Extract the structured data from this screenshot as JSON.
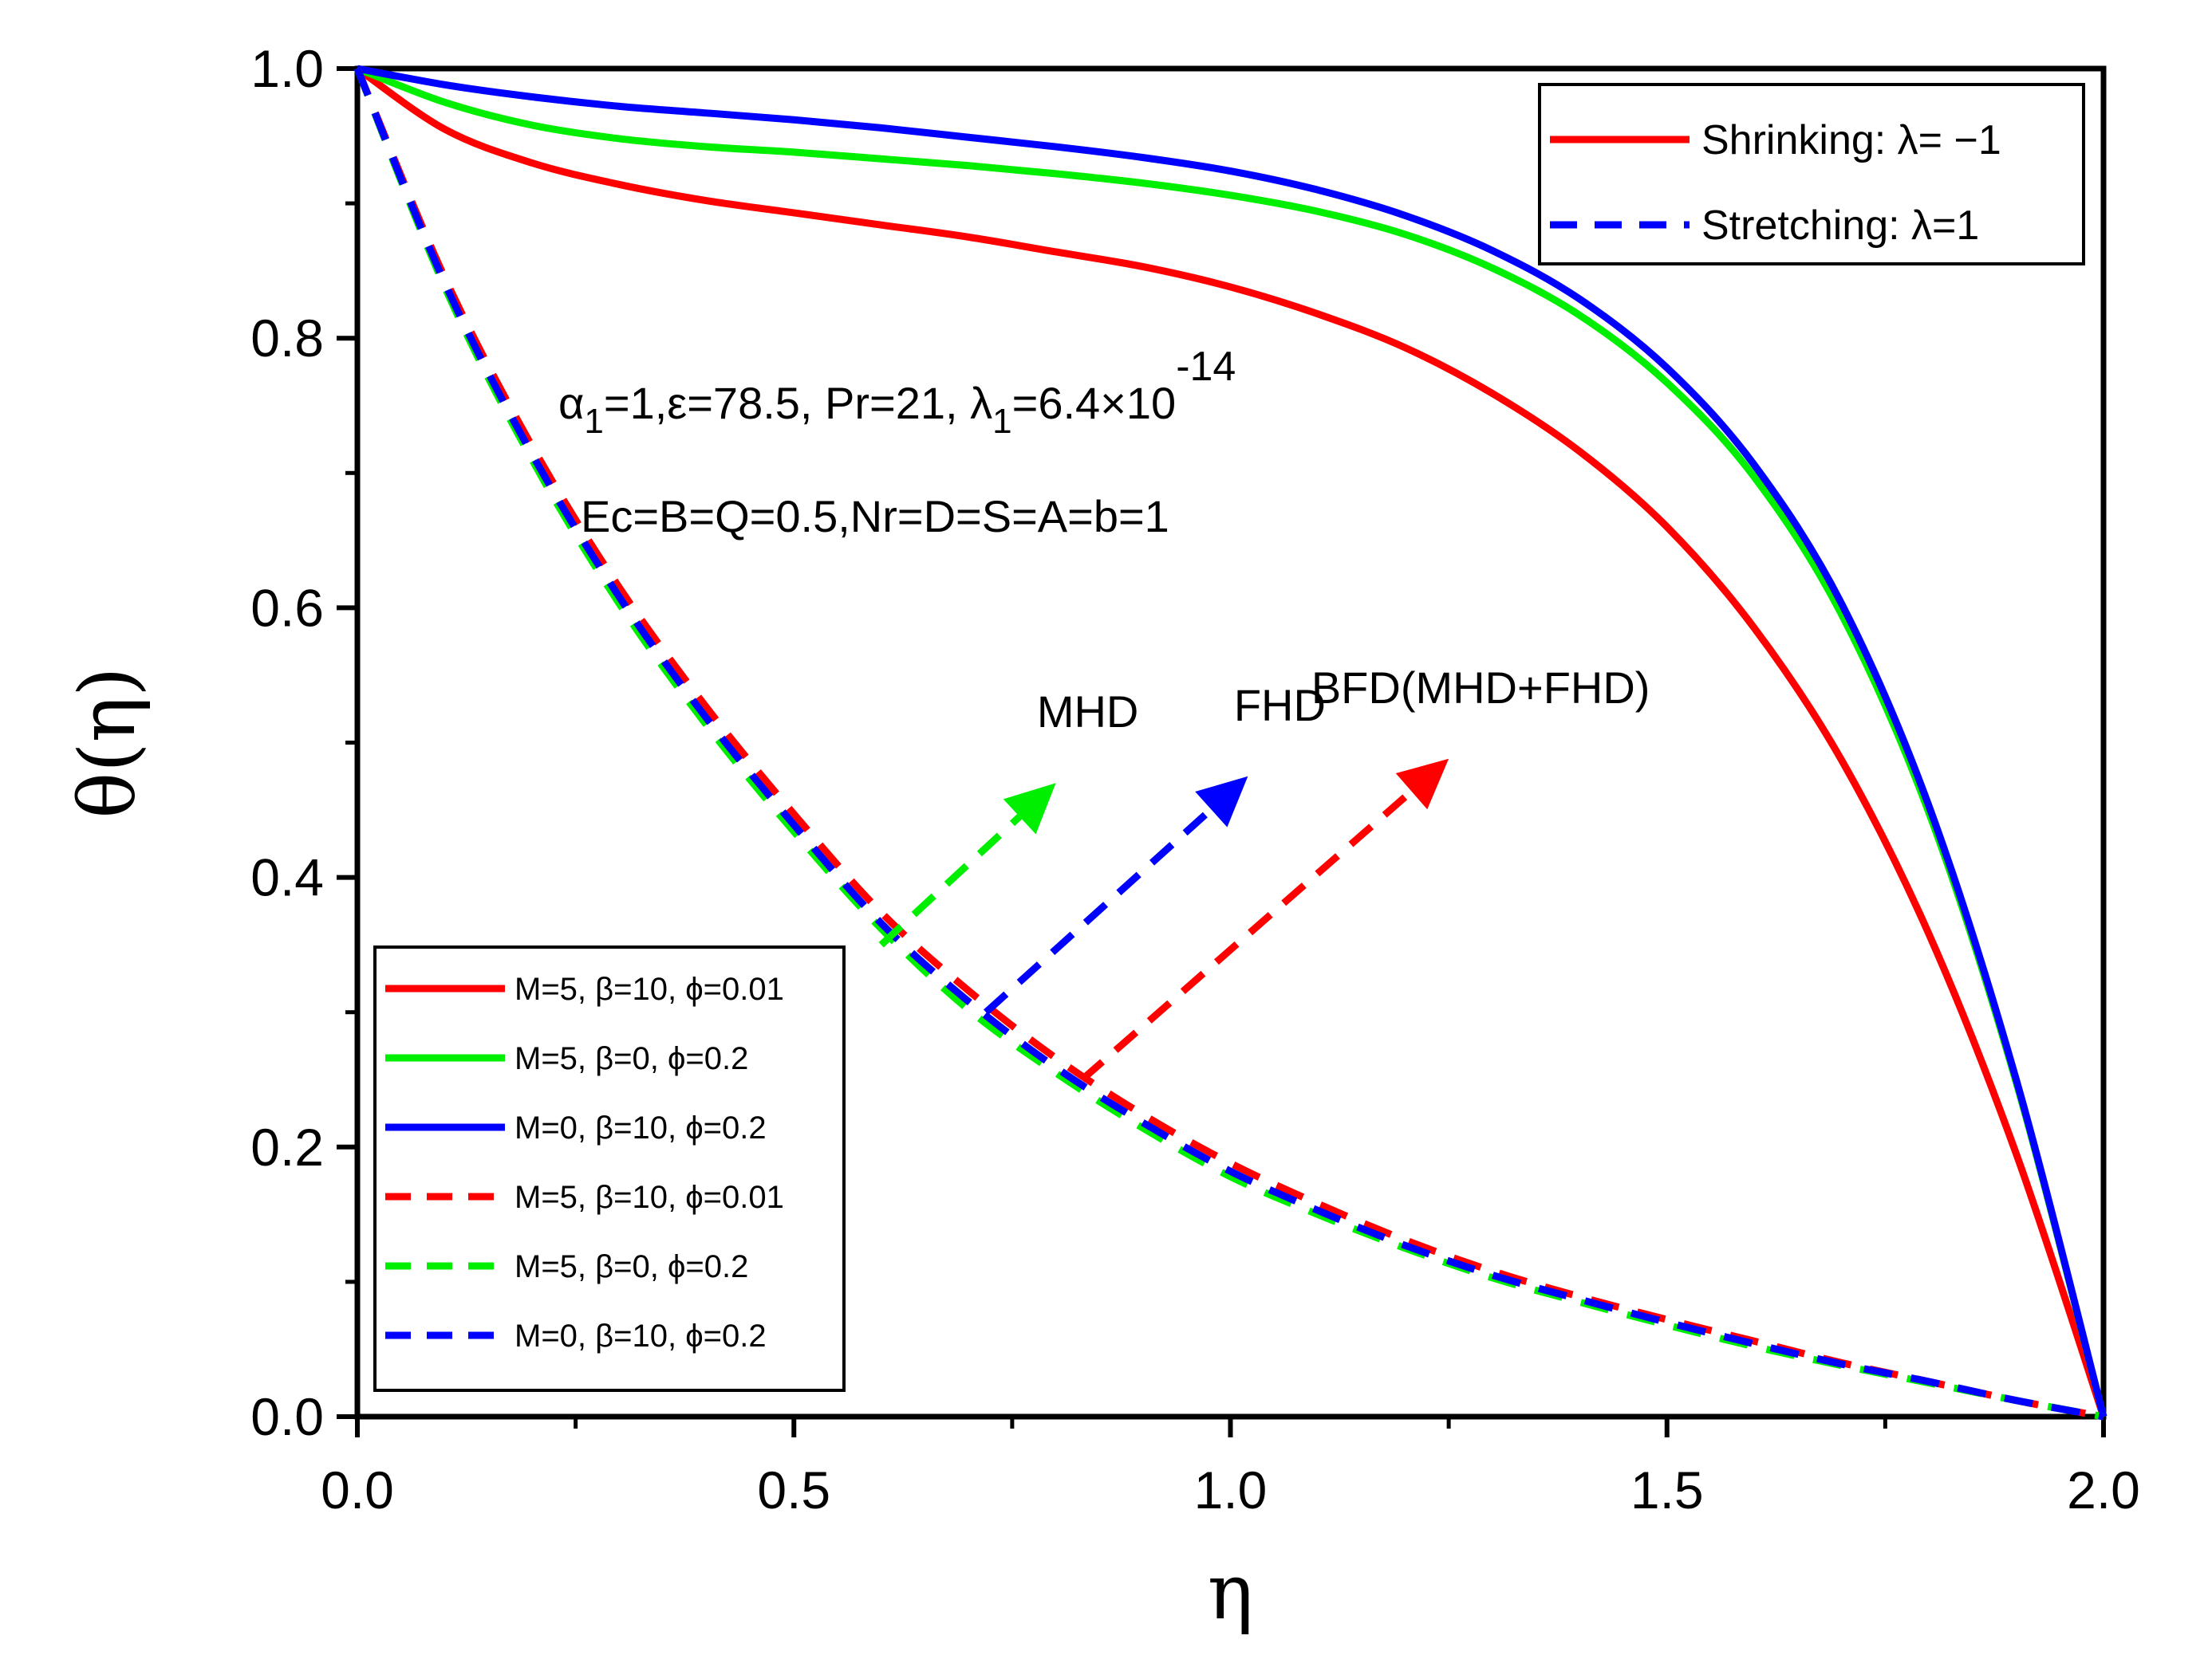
{
  "chart_data": {
    "type": "line",
    "xlabel": "η",
    "ylabel": "θ(η)",
    "xlim": [
      0,
      2
    ],
    "ylim": [
      0,
      1
    ],
    "x_ticks": [
      "0.0",
      "0.5",
      "1.0",
      "1.5",
      "2.0"
    ],
    "y_ticks": [
      "0.0",
      "0.2",
      "0.4",
      "0.6",
      "0.8",
      "1.0"
    ],
    "x": [
      0,
      0.1,
      0.2,
      0.3,
      0.4,
      0.5,
      0.6,
      0.7,
      0.8,
      0.9,
      1.0,
      1.1,
      1.2,
      1.3,
      1.4,
      1.5,
      1.6,
      1.7,
      1.8,
      1.9,
      2.0
    ],
    "series": [
      {
        "name": "Shrinking: M=5, β=10, ϕ=0.01",
        "group": "shrinking",
        "color": "#ff0000",
        "dash": "solid",
        "values": [
          1.0,
          0.955,
          0.93,
          0.914,
          0.902,
          0.893,
          0.884,
          0.875,
          0.864,
          0.853,
          0.838,
          0.818,
          0.793,
          0.759,
          0.716,
          0.66,
          0.585,
          0.487,
          0.358,
          0.195,
          0.0
        ]
      },
      {
        "name": "Shrinking: M=5, β=0, ϕ=0.2",
        "group": "shrinking",
        "color": "#00ee00",
        "dash": "solid",
        "values": [
          1.0,
          0.975,
          0.958,
          0.948,
          0.942,
          0.938,
          0.933,
          0.928,
          0.922,
          0.915,
          0.906,
          0.894,
          0.877,
          0.852,
          0.817,
          0.767,
          0.697,
          0.595,
          0.448,
          0.248,
          0.0
        ]
      },
      {
        "name": "Shrinking: M=0, β=10, ϕ=0.2",
        "group": "shrinking",
        "color": "#0000ff",
        "dash": "solid",
        "values": [
          1.0,
          0.988,
          0.979,
          0.972,
          0.967,
          0.962,
          0.956,
          0.949,
          0.942,
          0.934,
          0.924,
          0.91,
          0.891,
          0.865,
          0.829,
          0.778,
          0.706,
          0.603,
          0.453,
          0.25,
          0.0
        ]
      },
      {
        "name": "Stretching: M=5, β=10, ϕ=0.01",
        "group": "stretching",
        "color": "#ff0000",
        "dash": "dashed",
        "values": [
          1.0,
          0.845,
          0.72,
          0.615,
          0.526,
          0.447,
          0.374,
          0.316,
          0.266,
          0.224,
          0.188,
          0.158,
          0.131,
          0.108,
          0.089,
          0.072,
          0.056,
          0.04,
          0.026,
          0.012,
          0.0
        ]
      },
      {
        "name": "Stretching: M=5, β=0, ϕ=0.2",
        "group": "stretching",
        "color": "#00ee00",
        "dash": "dashed",
        "values": [
          1.0,
          0.838,
          0.71,
          0.603,
          0.513,
          0.434,
          0.362,
          0.302,
          0.255,
          0.214,
          0.178,
          0.15,
          0.125,
          0.103,
          0.085,
          0.068,
          0.052,
          0.038,
          0.025,
          0.012,
          0.0
        ]
      },
      {
        "name": "Stretching: M=0, β=10, ϕ=0.2",
        "group": "stretching",
        "color": "#0000ff",
        "dash": "dashed",
        "values": [
          1.0,
          0.841,
          0.714,
          0.608,
          0.518,
          0.439,
          0.366,
          0.308,
          0.259,
          0.218,
          0.182,
          0.153,
          0.127,
          0.105,
          0.087,
          0.07,
          0.054,
          0.039,
          0.026,
          0.012,
          0.0
        ]
      }
    ],
    "legend_top_right": {
      "items": [
        {
          "label": "Shrinking: λ= −1",
          "color": "#ff0000",
          "dash": "solid"
        },
        {
          "label": "Stretching: λ=1",
          "color": "#0000ff",
          "dash": "dashed"
        }
      ]
    },
    "legend_bottom_left": {
      "items": [
        {
          "label": "M=5, β=10, ϕ=0.01",
          "color": "#ff0000",
          "dash": "solid"
        },
        {
          "label": "M=5, β=0, ϕ=0.2",
          "color": "#00ee00",
          "dash": "solid"
        },
        {
          "label": "M=0, β=10, ϕ=0.2",
          "color": "#0000ff",
          "dash": "solid"
        },
        {
          "label": "M=5, β=10, ϕ=0.01",
          "color": "#ff0000",
          "dash": "dashed"
        },
        {
          "label": "M=5, β=0, ϕ=0.2",
          "color": "#00ee00",
          "dash": "dashed"
        },
        {
          "label": "M=0, β=10, ϕ=0.2",
          "color": "#0000ff",
          "dash": "dashed"
        }
      ]
    },
    "annotations": {
      "params_line1": {
        "alpha": "α",
        "alpha_sub": "1",
        "part1": "=1,ε=78.5, Pr=21, λ",
        "lambda_sub": "1",
        "part2": "=6.4×10",
        "exponent": "-14"
      },
      "params_line2": "Ec=B=Q=0.5,Nr=D=S=A=b=1",
      "arrows": [
        {
          "label": "MHD",
          "color": "#00ee00",
          "from": [
            0.6,
            0.35
          ],
          "to": [
            0.8,
            0.47
          ]
        },
        {
          "label": "FHD",
          "color": "#0000ff",
          "from": [
            0.72,
            0.3
          ],
          "to": [
            1.02,
            0.475
          ]
        },
        {
          "label": "BFD(MHD+FHD)",
          "color": "#ff0000",
          "from": [
            0.83,
            0.25
          ],
          "to": [
            1.25,
            0.488
          ]
        }
      ]
    }
  }
}
